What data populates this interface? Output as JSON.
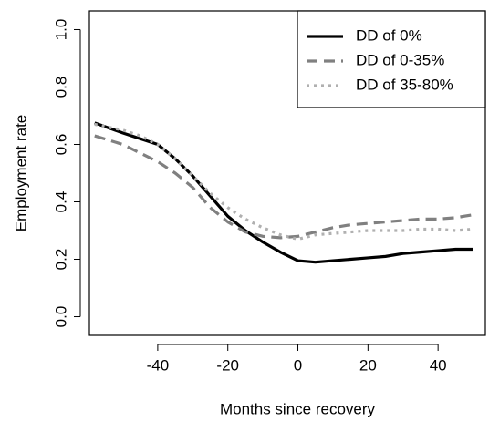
{
  "chart_data": {
    "type": "line",
    "xlabel": "Months since recovery",
    "ylabel": "Employment rate",
    "x": [
      -58,
      -50,
      -45,
      -40,
      -35,
      -30,
      -25,
      -20,
      -15,
      -10,
      -5,
      0,
      5,
      10,
      15,
      20,
      25,
      30,
      35,
      40,
      45,
      50
    ],
    "series": [
      {
        "name": "DD of 0%",
        "color": "#000000",
        "dash": "solid",
        "values": [
          0.675,
          0.64,
          0.62,
          0.6,
          0.55,
          0.49,
          0.42,
          0.35,
          0.3,
          0.26,
          0.225,
          0.195,
          0.19,
          0.195,
          0.2,
          0.205,
          0.21,
          0.22,
          0.225,
          0.23,
          0.235,
          0.235
        ]
      },
      {
        "name": "DD of 0-35%",
        "color": "#808080",
        "dash": "dashed",
        "values": [
          0.63,
          0.6,
          0.57,
          0.54,
          0.5,
          0.45,
          0.38,
          0.33,
          0.295,
          0.28,
          0.275,
          0.28,
          0.295,
          0.31,
          0.32,
          0.325,
          0.33,
          0.335,
          0.34,
          0.34,
          0.345,
          0.355
        ]
      },
      {
        "name": "DD of 35-80%",
        "color": "#b0b0b0",
        "dash": "dotted",
        "values": [
          0.67,
          0.65,
          0.63,
          0.6,
          0.55,
          0.49,
          0.43,
          0.38,
          0.34,
          0.31,
          0.285,
          0.27,
          0.285,
          0.29,
          0.295,
          0.3,
          0.3,
          0.3,
          0.305,
          0.305,
          0.3,
          0.305
        ]
      }
    ],
    "xlim": [
      -59.5,
      53.5
    ],
    "xticks": [
      -40,
      -20,
      0,
      20,
      40
    ],
    "ylim": [
      -0.065,
      1.065
    ],
    "yticks": [
      {
        "value": 0,
        "label": "0.0"
      },
      0.2,
      0.4,
      0.6,
      0.8,
      {
        "value": 1,
        "label": "1.0"
      }
    ],
    "legend": "top-right"
  }
}
